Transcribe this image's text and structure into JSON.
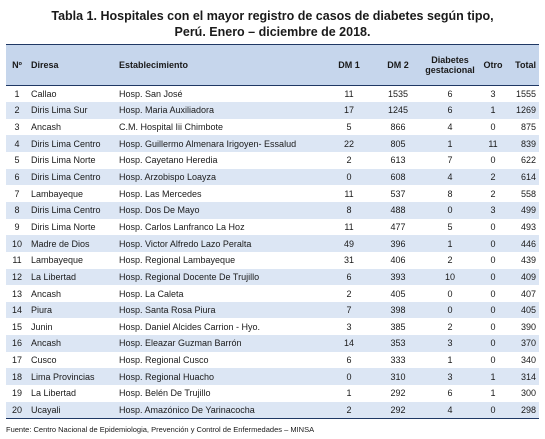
{
  "title": {
    "line1": "Tabla 1. Hospitales con el mayor registro de casos de diabetes según tipo,",
    "line2": "Perú. Enero – diciembre de 2018."
  },
  "headers": {
    "num": "Nº",
    "diresa": "Diresa",
    "establecimiento": "Establecimiento",
    "dm1": "DM 1",
    "dm2": "DM 2",
    "gestacional_l1": "Diabetes",
    "gestacional_l2": "gestacional",
    "otro": "Otro",
    "total": "Total"
  },
  "rows": [
    {
      "num": "1",
      "diresa": "Callao",
      "establecimiento": "Hosp. San José",
      "dm1": "11",
      "dm2": "1535",
      "gestacional": "6",
      "otro": "3",
      "total": "1555"
    },
    {
      "num": "2",
      "diresa": "Diris Lima Sur",
      "establecimiento": "Hosp. Maria Auxiliadora",
      "dm1": "17",
      "dm2": "1245",
      "gestacional": "6",
      "otro": "1",
      "total": "1269"
    },
    {
      "num": "3",
      "diresa": "Ancash",
      "establecimiento": "C.M. Hospital Iii Chimbote",
      "dm1": "5",
      "dm2": "866",
      "gestacional": "4",
      "otro": "0",
      "total": "875"
    },
    {
      "num": "4",
      "diresa": "Diris Lima Centro",
      "establecimiento": "Hosp. Guillermo Almenara Irigoyen- Essalud",
      "dm1": "22",
      "dm2": "805",
      "gestacional": "1",
      "otro": "11",
      "total": "839"
    },
    {
      "num": "5",
      "diresa": "Diris Lima Norte",
      "establecimiento": "Hosp. Cayetano Heredia",
      "dm1": "2",
      "dm2": "613",
      "gestacional": "7",
      "otro": "0",
      "total": "622"
    },
    {
      "num": "6",
      "diresa": "Diris Lima Centro",
      "establecimiento": "Hosp. Arzobispo Loayza",
      "dm1": "0",
      "dm2": "608",
      "gestacional": "4",
      "otro": "2",
      "total": "614"
    },
    {
      "num": "7",
      "diresa": "Lambayeque",
      "establecimiento": "Hosp. Las Mercedes",
      "dm1": "11",
      "dm2": "537",
      "gestacional": "8",
      "otro": "2",
      "total": "558"
    },
    {
      "num": "8",
      "diresa": "Diris Lima Centro",
      "establecimiento": "Hosp. Dos De Mayo",
      "dm1": "8",
      "dm2": "488",
      "gestacional": "0",
      "otro": "3",
      "total": "499"
    },
    {
      "num": "9",
      "diresa": "Diris Lima Norte",
      "establecimiento": "Hosp. Carlos Lanfranco La Hoz",
      "dm1": "11",
      "dm2": "477",
      "gestacional": "5",
      "otro": "0",
      "total": "493"
    },
    {
      "num": "10",
      "diresa": "Madre de Dios",
      "establecimiento": "Hosp. Victor Alfredo Lazo Peralta",
      "dm1": "49",
      "dm2": "396",
      "gestacional": "1",
      "otro": "0",
      "total": "446"
    },
    {
      "num": "11",
      "diresa": "Lambayeque",
      "establecimiento": "Hosp. Regional Lambayeque",
      "dm1": "31",
      "dm2": "406",
      "gestacional": "2",
      "otro": "0",
      "total": "439"
    },
    {
      "num": "12",
      "diresa": "La Libertad",
      "establecimiento": "Hosp. Regional Docente De Trujillo",
      "dm1": "6",
      "dm2": "393",
      "gestacional": "10",
      "otro": "0",
      "total": "409"
    },
    {
      "num": "13",
      "diresa": "Ancash",
      "establecimiento": "Hosp. La Caleta",
      "dm1": "2",
      "dm2": "405",
      "gestacional": "0",
      "otro": "0",
      "total": "407"
    },
    {
      "num": "14",
      "diresa": "Piura",
      "establecimiento": "Hosp. Santa Rosa Piura",
      "dm1": "7",
      "dm2": "398",
      "gestacional": "0",
      "otro": "0",
      "total": "405"
    },
    {
      "num": "15",
      "diresa": "Junin",
      "establecimiento": "Hosp. Daniel Alcides Carrion - Hyo.",
      "dm1": "3",
      "dm2": "385",
      "gestacional": "2",
      "otro": "0",
      "total": "390"
    },
    {
      "num": "16",
      "diresa": "Ancash",
      "establecimiento": "Hosp. Eleazar Guzman Barrón",
      "dm1": "14",
      "dm2": "353",
      "gestacional": "3",
      "otro": "0",
      "total": "370"
    },
    {
      "num": "17",
      "diresa": "Cusco",
      "establecimiento": "Hosp. Regional Cusco",
      "dm1": "6",
      "dm2": "333",
      "gestacional": "1",
      "otro": "0",
      "total": "340"
    },
    {
      "num": "18",
      "diresa": "Lima Provincias",
      "establecimiento": "Hosp. Regional Huacho",
      "dm1": "0",
      "dm2": "310",
      "gestacional": "3",
      "otro": "1",
      "total": "314"
    },
    {
      "num": "19",
      "diresa": "La Libertad",
      "establecimiento": "Hosp. Belén De Trujillo",
      "dm1": "1",
      "dm2": "292",
      "gestacional": "6",
      "otro": "1",
      "total": "300"
    },
    {
      "num": "20",
      "diresa": "Ucayali",
      "establecimiento": "Hosp. Amazónico De Yarinacocha",
      "dm1": "2",
      "dm2": "292",
      "gestacional": "4",
      "otro": "0",
      "total": "298"
    }
  ],
  "source": "Fuente: Centro Nacional de Epidemiologia, Prevención y Control de Enfermedades – MINSA"
}
